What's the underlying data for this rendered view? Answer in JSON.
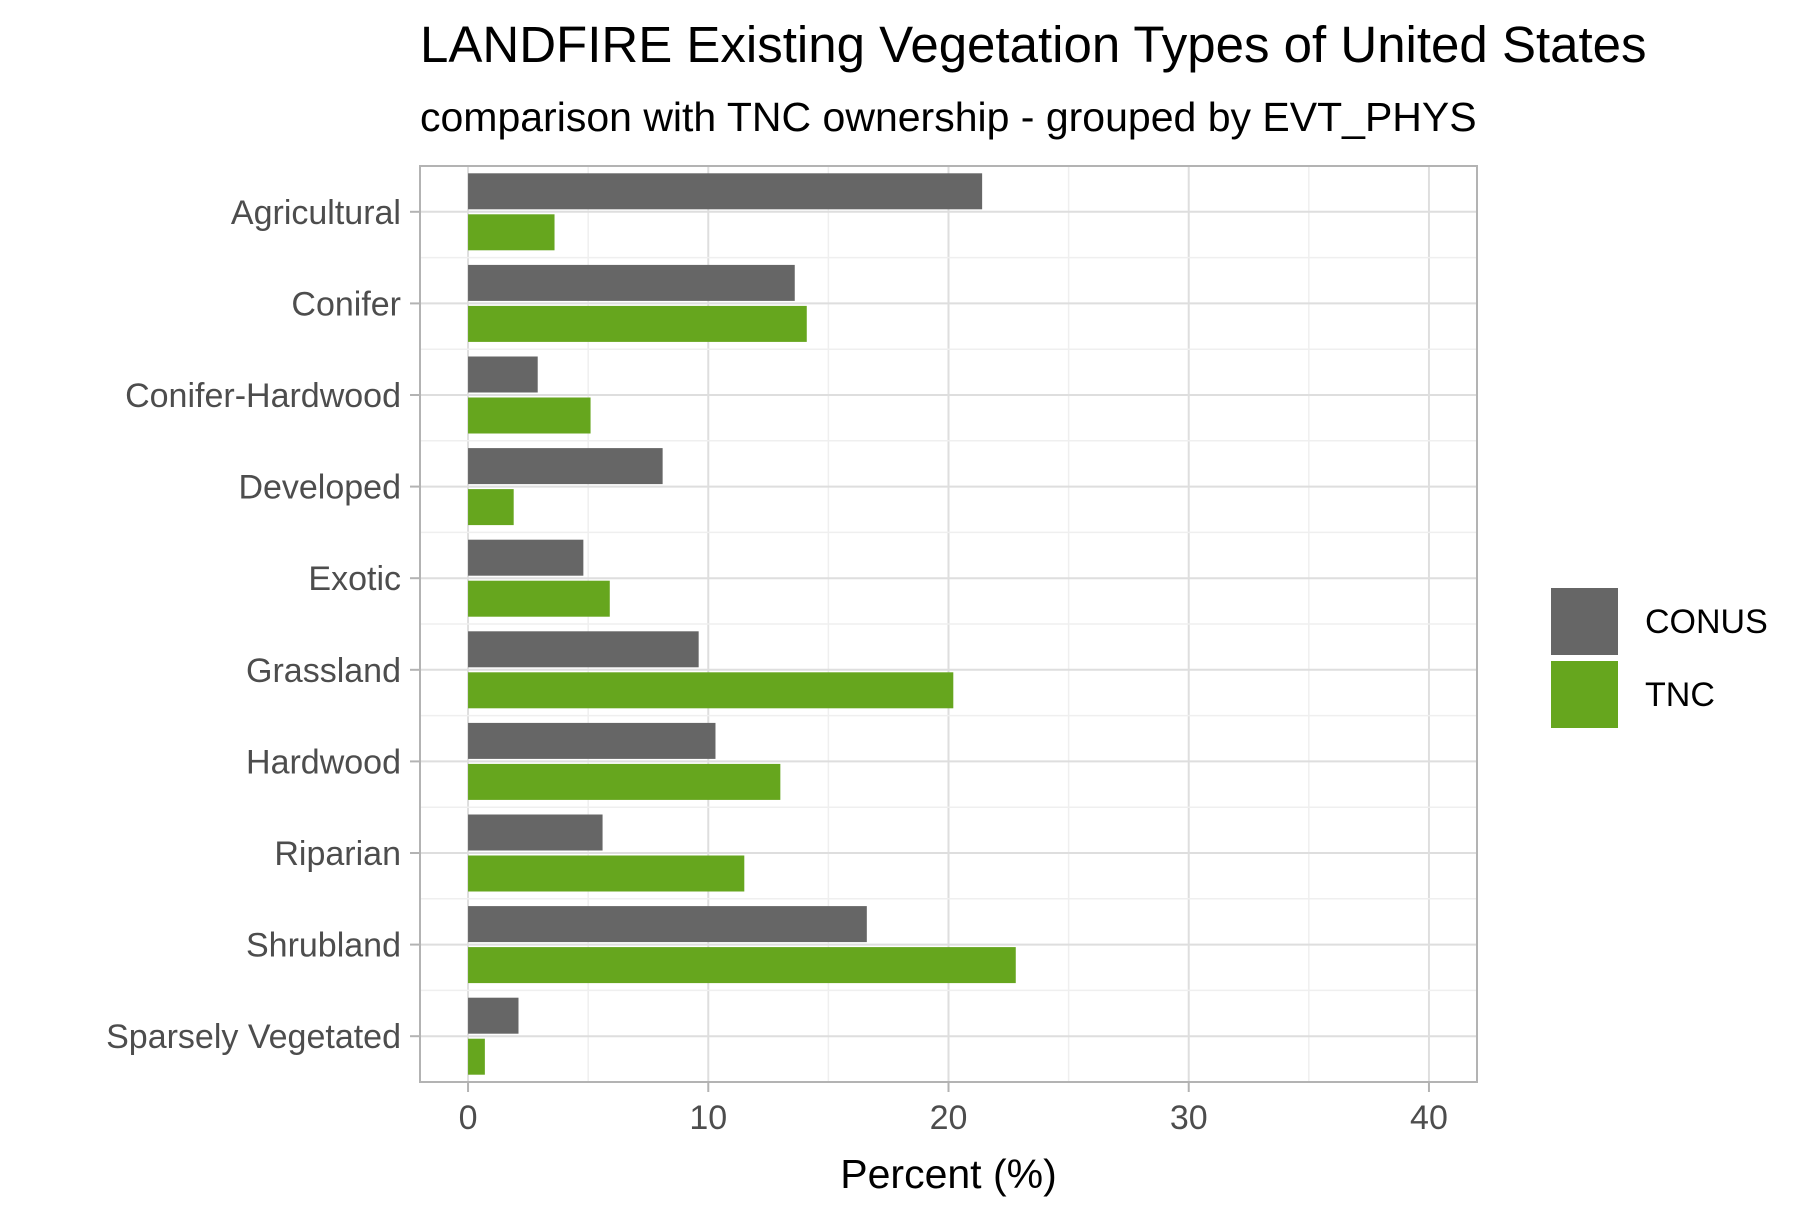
{
  "chart_data": {
    "type": "bar",
    "orientation": "horizontal",
    "title": "LANDFIRE Existing Vegetation Types of United States",
    "subtitle": "comparison with TNC ownership - grouped by EVT_PHYS",
    "xlabel": "Percent (%)",
    "ylabel": "",
    "xlim": [
      -2,
      42
    ],
    "xticks": [
      0,
      10,
      20,
      30,
      40
    ],
    "grid": true,
    "legend_position": "right",
    "categories": [
      "Agricultural",
      "Conifer",
      "Conifer-Hardwood",
      "Developed",
      "Exotic",
      "Grassland",
      "Hardwood",
      "Riparian",
      "Shrubland",
      "Sparsely Vegetated"
    ],
    "series": [
      {
        "name": "CONUS",
        "color": "#666666",
        "values": [
          21.4,
          13.6,
          2.9,
          8.1,
          4.8,
          9.6,
          10.3,
          5.6,
          16.6,
          2.1
        ]
      },
      {
        "name": "TNC",
        "color": "#66a61e",
        "values": [
          3.6,
          14.1,
          5.1,
          1.9,
          5.9,
          20.2,
          13.0,
          11.5,
          22.8,
          0.7
        ]
      }
    ]
  }
}
